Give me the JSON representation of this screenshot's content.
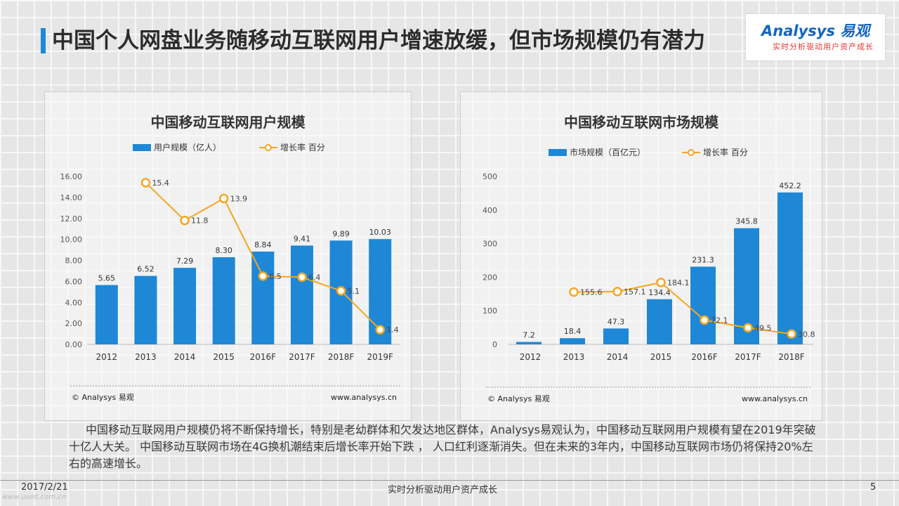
{
  "slide": {
    "title": "中国个人网盘业务随移动互联网用户增速放缓，但市场规模仍有潜力",
    "logo_main": "Analysys 易观",
    "logo_sub": "实时分析驱动用户资产成长",
    "description": "中国移动互联网用户规模仍将不断保持增长，特别是老幼群体和欠发达地区群体，Analysys易观认为，中国移动互联网用户规模有望在2019年突破十亿人大关。 中国移动互联网市场在4G换机潮结束后增长率开始下跌 ，  人口红利逐渐消失。但在未来的3年内，中国移动互联网市场仍将保持20%左右的高速增长。",
    "footer_date": "2017/2/21",
    "footer_slogan": "实时分析驱动用户资产成长",
    "page_number": "5",
    "footer_url": "www.useit.com.cn"
  },
  "colors": {
    "bar": "#1e88d6",
    "line": "#f5a623",
    "title_accent": "#1e88d6"
  },
  "chart_data": [
    {
      "type": "bar",
      "title": "中国移动互联网用户规模",
      "categories": [
        "2012",
        "2013",
        "2014",
        "2015",
        "2016F",
        "2017F",
        "2018F",
        "2019F"
      ],
      "series": [
        {
          "name": "用户规模（亿人）",
          "values": [
            5.65,
            6.52,
            7.29,
            8.3,
            8.84,
            9.41,
            9.89,
            10.03
          ],
          "labels": [
            "5.65",
            "6.52",
            "7.29",
            "8.30",
            "8.84",
            "9.41",
            "9.89",
            "10.03"
          ]
        },
        {
          "name": "增长率 百分",
          "type": "line",
          "values": [
            null,
            15.4,
            11.8,
            13.9,
            6.5,
            6.4,
            5.1,
            1.4
          ],
          "labels": [
            "",
            "15.4",
            "11.8",
            "13.9",
            "6.5",
            "6.4",
            "5.1",
            "1.4"
          ]
        }
      ],
      "yticks": [
        "0.00",
        "2.00",
        "4.00",
        "6.00",
        "8.00",
        "10.00",
        "12.00",
        "14.00",
        "16.00"
      ],
      "ylim": [
        0,
        16
      ],
      "legend_position": "top",
      "source": "© Analysys 易观",
      "website": "www.analysys.cn"
    },
    {
      "type": "bar",
      "title": "中国移动互联网市场规模",
      "categories": [
        "2012",
        "2013",
        "2014",
        "2015",
        "2016F",
        "2017F",
        "2018F"
      ],
      "series": [
        {
          "name": "市场规模（百亿元）",
          "values": [
            7.2,
            18.4,
            47.3,
            134.4,
            231.3,
            345.8,
            452.2
          ],
          "labels": [
            "7.2",
            "18.4",
            "47.3",
            "134.4",
            "231.3",
            "345.8",
            "452.2"
          ]
        },
        {
          "name": "增长率 百分",
          "type": "line",
          "values": [
            null,
            155.6,
            157.1,
            184.1,
            72.1,
            49.5,
            30.8
          ],
          "labels": [
            "",
            "155.6",
            "157.1",
            "184.1",
            "72.1",
            "49.5",
            "30.8"
          ]
        }
      ],
      "yticks": [
        "0",
        "100",
        "200",
        "300",
        "400",
        "500"
      ],
      "ylim": [
        0,
        500
      ],
      "legend_position": "top",
      "source": "© Analysys 易观",
      "website": "www.analysys.cn"
    }
  ]
}
